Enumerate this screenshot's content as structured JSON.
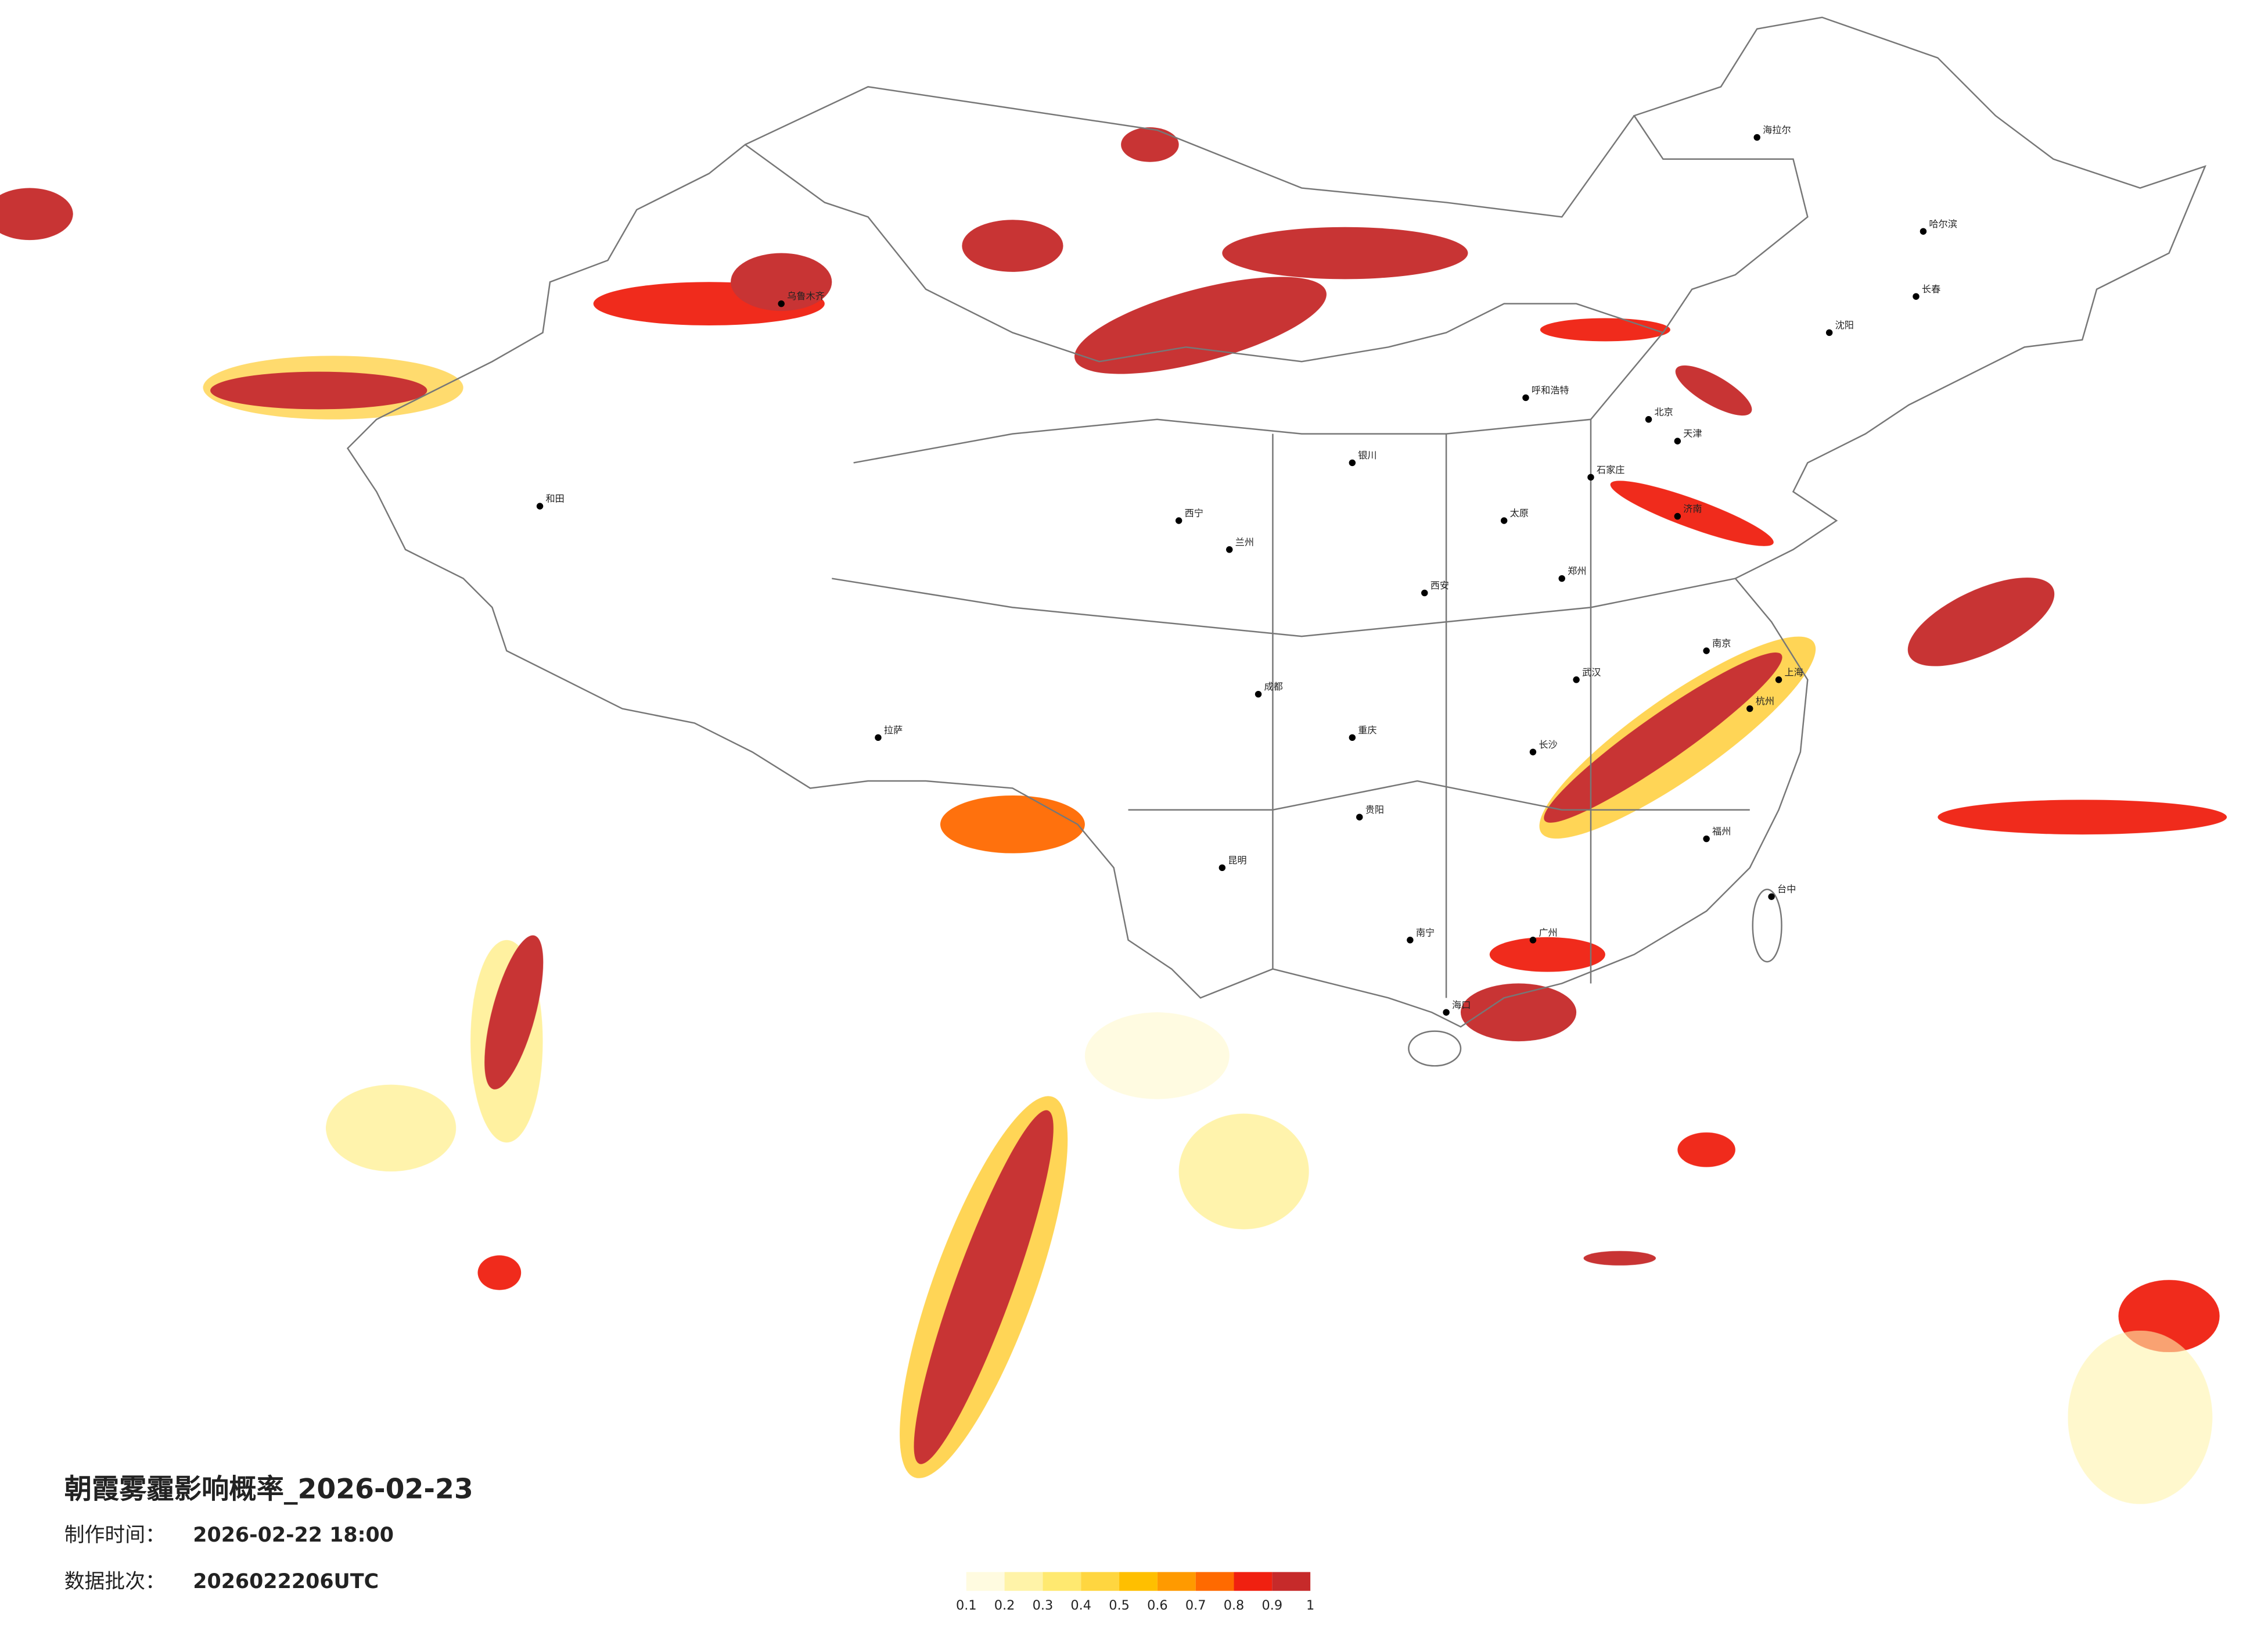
{
  "map": {
    "title": "朝霞雾霾影响概率_2026-02-23",
    "made_label": "制作时间：",
    "made_time": "2026-02-22 18:00",
    "batch_label": "数据批次：",
    "batch": "2026022206UTC",
    "legend": {
      "colors": [
        "#fffbe0",
        "#fff3a8",
        "#ffe970",
        "#ffd640",
        "#ffbf00",
        "#ff9a00",
        "#ff6a00",
        "#f02010",
        "#c62a2a"
      ],
      "ticks": [
        0.1,
        0.2,
        0.3,
        0.4,
        0.5,
        0.6,
        0.7,
        0.8,
        0.9,
        1
      ]
    },
    "cities": [
      "北京",
      "天津",
      "石家庄",
      "太原",
      "济南",
      "郑州",
      "西安",
      "武汉",
      "长沙",
      "南京",
      "上海",
      "杭州",
      "福州",
      "广州",
      "南宁",
      "昆明",
      "贵阳",
      "成都",
      "重庆",
      "兰州",
      "西宁",
      "银川",
      "呼和浩特",
      "沈阳",
      "长春",
      "哈尔滨",
      "乌鲁木齐",
      "拉萨",
      "和田",
      "海拉尔",
      "台中",
      "海口"
    ]
  }
}
